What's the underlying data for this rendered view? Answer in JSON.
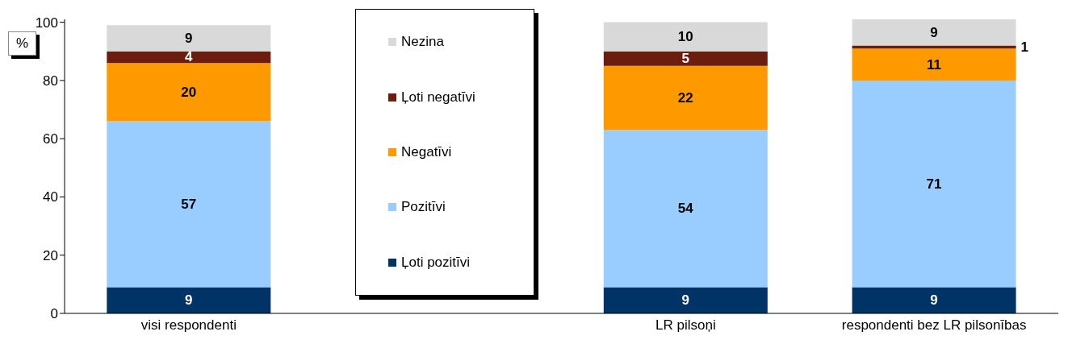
{
  "chart_data": {
    "type": "bar",
    "stacked": true,
    "ylabel": "%",
    "categories": [
      "visi respondenti",
      null,
      "LR pilsoņi",
      "respondenti bez LR pilsonības"
    ],
    "series": [
      {
        "name": "Ļoti pozitīvi",
        "color": "#003366",
        "values": [
          9,
          null,
          9,
          9
        ]
      },
      {
        "name": "Pozitīvi",
        "color": "#99ccff",
        "values": [
          57,
          null,
          54,
          71
        ]
      },
      {
        "name": "Negatīvi",
        "color": "#ff9900",
        "values": [
          20,
          null,
          22,
          11
        ]
      },
      {
        "name": "Ļoti negatīvi",
        "color": "#6b1d0e",
        "values": [
          4,
          null,
          5,
          1
        ]
      },
      {
        "name": "Nezina",
        "color": "#d9d9d9",
        "values": [
          9,
          null,
          10,
          9
        ]
      }
    ],
    "ylim": [
      0,
      101
    ],
    "yticks": [
      0,
      20,
      40,
      60,
      80,
      100
    ],
    "grid": false,
    "legend": "top",
    "data_labels": true
  }
}
